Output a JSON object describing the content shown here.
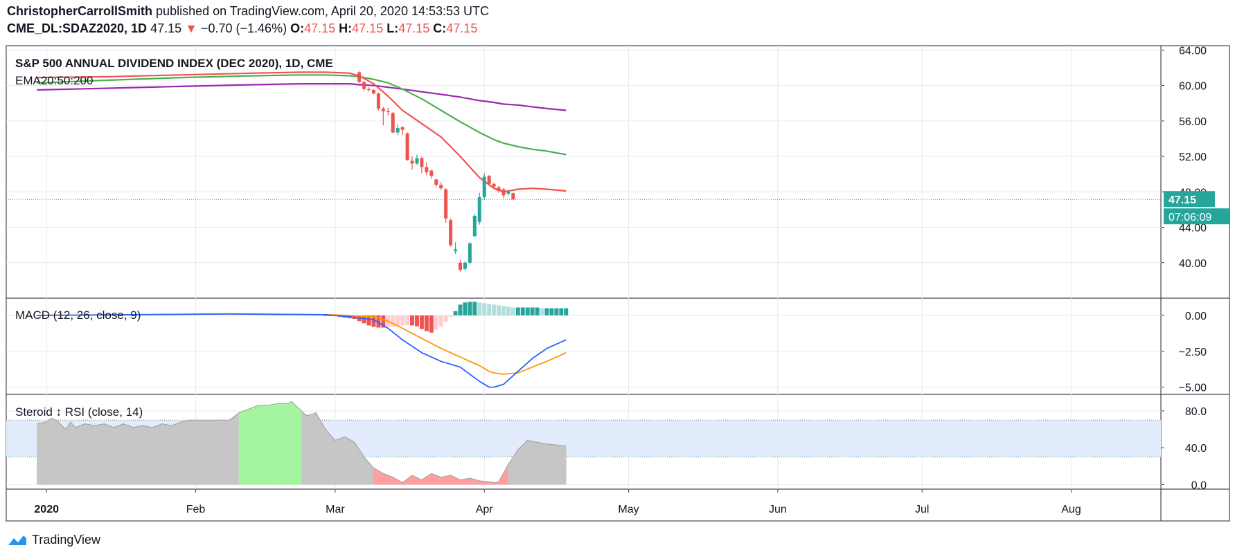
{
  "header": {
    "author": "ChristopherCarrollSmith",
    "published": "published on TradingView.com, April 20, 2020 14:53:53 UTC",
    "symbol": "CME_DL:SDAZ2020, 1D",
    "last": "47.15",
    "change": "−0.70 (−1.46%)",
    "o_label": "O:",
    "o": "47.15",
    "h_label": "H:",
    "h": "47.15",
    "l_label": "L:",
    "l": "47.15",
    "c_label": "C:",
    "c": "47.15"
  },
  "footer": {
    "brand": "TradingView"
  },
  "colors": {
    "up": "#26a69a",
    "down": "#ef5350",
    "ema20": "#ef5350",
    "ema50": "#4caf50",
    "ema200": "#9c27b0",
    "macd": "#2962ff",
    "signal": "#ff9800",
    "hist_up_strong": "#26a69a",
    "hist_up_weak": "#b2dfdb",
    "hist_down_strong": "#ef5350",
    "hist_down_weak": "#ffcdd2",
    "rsi_band": "#e3ecfb",
    "rsi_ob": "#a5f5a0",
    "rsi_os": "#ffa0a0",
    "rsi_mid": "#c6c6c6"
  },
  "chart_data": [
    {
      "type": "candlestick",
      "title": "S&P 500 ANNUAL DIVIDEND INDEX (DEC 2020), 1D, CME",
      "indicator_label": "EMA20:50:200",
      "ylim": [
        36,
        64.5
      ],
      "yticks": [
        "64.00",
        "60.00",
        "56.00",
        "52.00",
        "48.00",
        "44.00",
        "40.00"
      ],
      "x_axis": {
        "labels": [
          "2020",
          "Feb",
          "Mar",
          "Apr",
          "May",
          "Jun",
          "Jul",
          "Aug"
        ],
        "label_day": [
          2,
          33,
          62,
          93,
          123,
          154,
          184,
          215
        ],
        "first_label_bold": true
      },
      "last_price": "47.15",
      "countdown": "07:06:09",
      "candles_day_offset": 67,
      "candles": [
        [
          61.5,
          61.6,
          60.3,
          60.4
        ],
        [
          60.4,
          60.5,
          59.4,
          59.6
        ],
        [
          59.6,
          59.8,
          59.3,
          59.5
        ],
        [
          59.5,
          59.6,
          59.0,
          59.1
        ],
        [
          59.1,
          59.2,
          57.2,
          57.4
        ],
        [
          57.4,
          57.6,
          55.5,
          57.1
        ],
        [
          57.1,
          57.5,
          56.6,
          57.0
        ],
        [
          56.9,
          57.0,
          54.6,
          54.7
        ],
        [
          54.7,
          55.6,
          54.4,
          55.2
        ],
        [
          55.3,
          55.4,
          54.4,
          55.0
        ],
        [
          54.6,
          54.7,
          51.5,
          51.6
        ],
        [
          51.5,
          52.0,
          50.5,
          51.2
        ],
        [
          51.2,
          52.2,
          51.0,
          51.8
        ],
        [
          51.8,
          52.0,
          50.1,
          50.8
        ],
        [
          50.8,
          51.3,
          49.9,
          50.2
        ],
        [
          50.4,
          50.5,
          49.5,
          49.8
        ],
        [
          49.4,
          49.5,
          48.5,
          48.8
        ],
        [
          48.8,
          49.1,
          48.2,
          48.4
        ],
        [
          48.3,
          48.4,
          44.5,
          45.0
        ],
        [
          44.8,
          45.0,
          41.8,
          42.0
        ],
        [
          41.3,
          42.3,
          41.0,
          41.5
        ],
        [
          40.0,
          40.3,
          39.0,
          39.2
        ],
        [
          39.3,
          40.2,
          39.1,
          40.0
        ],
        [
          40.0,
          42.3,
          39.8,
          42.2
        ],
        [
          43.0,
          45.5,
          42.9,
          45.3
        ],
        [
          44.6,
          47.9,
          44.3,
          47.4
        ],
        [
          47.4,
          50.1,
          47.1,
          49.7
        ],
        [
          49.8,
          49.9,
          48.8,
          48.9
        ],
        [
          48.9,
          49.0,
          48.3,
          48.6
        ],
        [
          48.5,
          48.7,
          47.9,
          48.1
        ],
        [
          48.3,
          48.4,
          47.3,
          47.6
        ],
        [
          47.8,
          48.2,
          47.6,
          48.0
        ],
        [
          47.85,
          47.9,
          47.1,
          47.15
        ]
      ],
      "ema_day": [
        0,
        15,
        30,
        45,
        55,
        60,
        65,
        67,
        70,
        73,
        76,
        80,
        84,
        88,
        92,
        95,
        97,
        100,
        103,
        106,
        110
      ],
      "ema20": [
        60.9,
        61.0,
        61.2,
        61.4,
        61.5,
        61.5,
        61.4,
        61.1,
        60.2,
        58.8,
        57.2,
        55.7,
        54.2,
        52.0,
        49.6,
        48.4,
        48.0,
        48.3,
        48.4,
        48.3,
        48.1
      ],
      "ema50": [
        60.3,
        60.6,
        60.9,
        61.1,
        61.2,
        61.2,
        61.1,
        61.0,
        60.7,
        60.3,
        59.6,
        58.5,
        57.2,
        55.9,
        54.7,
        53.9,
        53.5,
        53.1,
        52.8,
        52.6,
        52.2
      ],
      "ema200": [
        59.5,
        59.7,
        59.9,
        60.1,
        60.2,
        60.2,
        60.2,
        60.1,
        60.0,
        59.8,
        59.6,
        59.3,
        59.0,
        58.7,
        58.3,
        58.1,
        57.9,
        57.8,
        57.6,
        57.4,
        57.2
      ]
    },
    {
      "type": "macd",
      "title": "MACD (12, 26, close, 9)",
      "ylim": [
        -5.5,
        1.2
      ],
      "yticks": [
        "0.00",
        "−2.50",
        "−5.00"
      ],
      "day": [
        0,
        20,
        40,
        60,
        65,
        70,
        73,
        76,
        80,
        84,
        88,
        92,
        94,
        95,
        97,
        100,
        103,
        106,
        110
      ],
      "macd": [
        0.0,
        0.05,
        0.1,
        0.05,
        -0.1,
        -0.3,
        -0.9,
        -1.7,
        -2.6,
        -3.2,
        -3.6,
        -4.6,
        -5.0,
        -5.0,
        -4.8,
        -3.9,
        -3.0,
        -2.3,
        -1.7
      ],
      "signal": [
        0.0,
        0.05,
        0.1,
        0.05,
        0.0,
        -0.1,
        -0.4,
        -0.9,
        -1.6,
        -2.3,
        -2.9,
        -3.5,
        -3.9,
        -4.0,
        -4.1,
        -4.0,
        -3.6,
        -3.2,
        -2.6
      ],
      "hist_day_offset": 60,
      "hist": [
        -0.02,
        -0.05,
        -0.05,
        -0.1,
        -0.15,
        -0.2,
        -0.25,
        -0.4,
        -0.55,
        -0.7,
        -0.8,
        -0.85,
        -0.85,
        -0.82,
        -0.8,
        -0.75,
        -0.7,
        -0.68,
        -0.7,
        -0.75,
        -0.95,
        -1.1,
        -1.2,
        -1.0,
        -0.8,
        -0.45,
        -0.1,
        0.3,
        0.75,
        0.9,
        0.95,
        0.95,
        0.9,
        0.85,
        0.8,
        0.75,
        0.7,
        0.65,
        0.6,
        0.55,
        0.55,
        0.55,
        0.55,
        0.55,
        0.55,
        0.5,
        0.5,
        0.5,
        0.5,
        0.5,
        0.5
      ]
    },
    {
      "type": "area",
      "title": "Steroid ↕ RSI (close, 14)",
      "ylim": [
        -5,
        98
      ],
      "yticks": [
        "80.0",
        "40.0",
        "0.0"
      ],
      "band": [
        30,
        70
      ],
      "day": [
        0,
        2,
        3,
        4,
        6,
        7,
        8,
        10,
        12,
        14,
        16,
        18,
        20,
        22,
        24,
        26,
        28,
        30,
        32,
        34,
        36,
        38,
        40,
        42,
        44,
        46,
        48,
        50,
        52,
        53,
        54,
        55,
        56,
        57,
        58,
        60,
        62,
        64,
        66,
        67,
        68,
        70,
        72,
        74,
        76,
        78,
        80,
        82,
        84,
        86,
        88,
        90,
        92,
        94,
        95,
        96,
        98,
        100,
        102,
        104,
        106,
        108,
        110
      ],
      "rsi": [
        66,
        68,
        72,
        70,
        60,
        68,
        62,
        66,
        64,
        66,
        62,
        66,
        62,
        64,
        62,
        66,
        64,
        68,
        70,
        70,
        70,
        70,
        70,
        78,
        82,
        86,
        86,
        88,
        88,
        90,
        85,
        80,
        75,
        76,
        78,
        60,
        48,
        52,
        46,
        38,
        30,
        18,
        12,
        8,
        2,
        10,
        5,
        12,
        8,
        10,
        5,
        7,
        4,
        3,
        2,
        3,
        22,
        38,
        48,
        46,
        44,
        43,
        42
      ]
    }
  ]
}
